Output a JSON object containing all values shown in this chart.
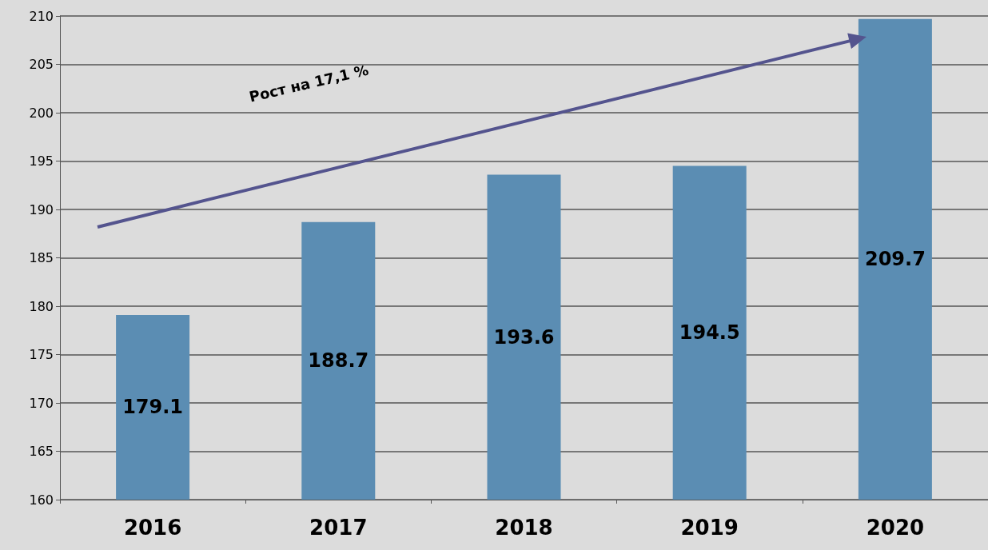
{
  "chart_data": {
    "type": "bar",
    "categories": [
      "2016",
      "2017",
      "2018",
      "2019",
      "2020"
    ],
    "values": [
      179.1,
      188.7,
      193.6,
      194.5,
      209.7
    ],
    "color": "#5b8db3",
    "ylim": [
      160,
      210
    ],
    "yticks": [
      160,
      165,
      170,
      175,
      180,
      185,
      190,
      195,
      200,
      205,
      210
    ],
    "grid": "y",
    "data_labels": true,
    "annotations": [
      "Рост на 17,1 %"
    ]
  }
}
